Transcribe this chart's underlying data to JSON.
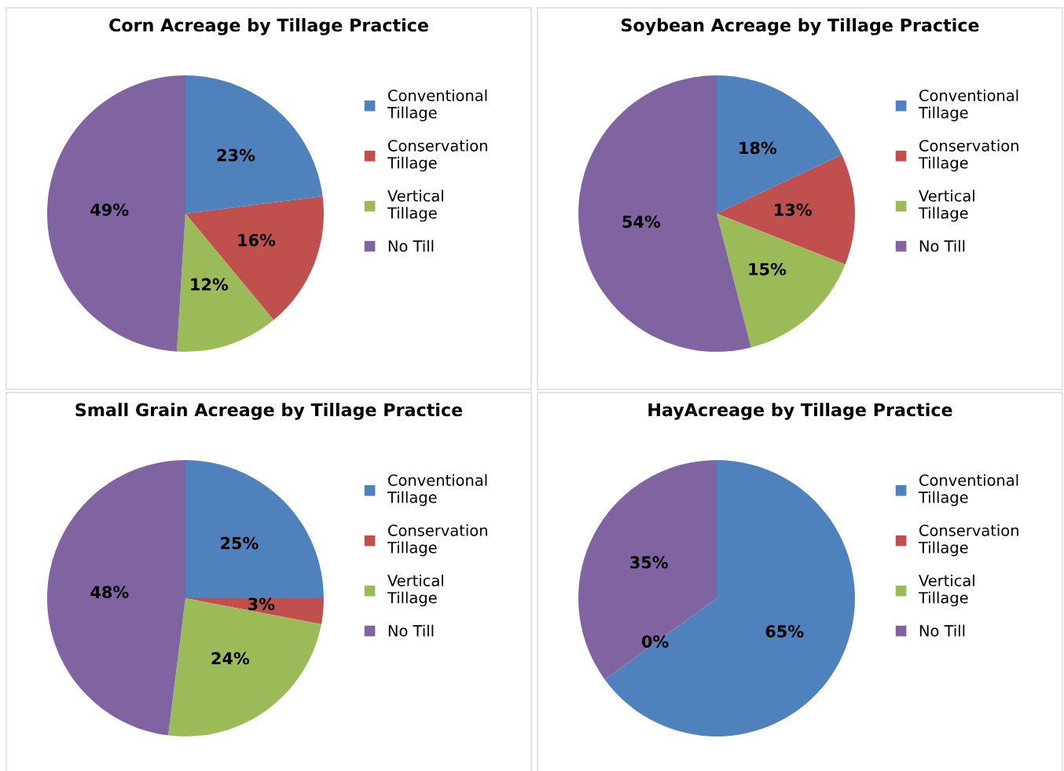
{
  "chart_data": [
    {
      "type": "pie",
      "title": "Corn Acreage by Tillage Practice",
      "categories": [
        "Conventional Tillage",
        "Conservation Tillage",
        "Vertical Tillage",
        "No Till"
      ],
      "values": [
        23,
        16,
        12,
        49
      ],
      "colors": [
        "#4f81bd",
        "#c0504d",
        "#9bbb59",
        "#8064a2"
      ],
      "value_labels": [
        "23%",
        "16%",
        "12%",
        "49%"
      ],
      "legend": "right"
    },
    {
      "type": "pie",
      "title": "Soybean Acreage by Tillage Practice",
      "categories": [
        "Conventional Tillage",
        "Conservation Tillage",
        "Vertical Tillage",
        "No Till"
      ],
      "values": [
        18,
        13,
        15,
        54
      ],
      "colors": [
        "#4f81bd",
        "#c0504d",
        "#9bbb59",
        "#8064a2"
      ],
      "value_labels": [
        "18%",
        "13%",
        "15%",
        "54%"
      ],
      "legend": "right"
    },
    {
      "type": "pie",
      "title": "Small Grain Acreage by Tillage Practice",
      "categories": [
        "Conventional Tillage",
        "Conservation Tillage",
        "Vertical Tillage",
        "No Till"
      ],
      "values": [
        25,
        3,
        24,
        48
      ],
      "colors": [
        "#4f81bd",
        "#c0504d",
        "#9bbb59",
        "#8064a2"
      ],
      "value_labels": [
        "25%",
        "3%",
        "24%",
        "48%"
      ],
      "legend": "right"
    },
    {
      "type": "pie",
      "title": "HayAcreage by Tillage Practice",
      "categories": [
        "Conventional Tillage",
        "Conservation Tillage",
        "Vertical Tillage",
        "No Till"
      ],
      "values": [
        65,
        0,
        0,
        35
      ],
      "colors": [
        "#4f81bd",
        "#c0504d",
        "#9bbb59",
        "#8064a2"
      ],
      "value_labels": [
        "65%",
        null,
        "0%",
        "35%"
      ],
      "legend": "right"
    }
  ]
}
